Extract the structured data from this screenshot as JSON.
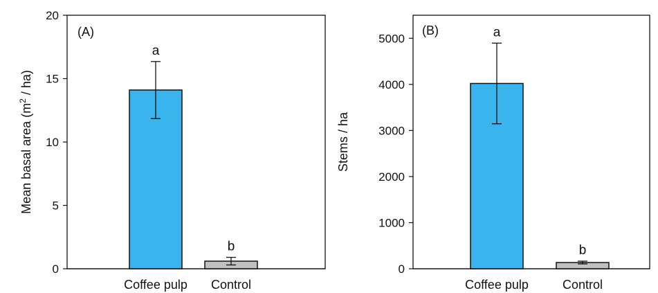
{
  "chart_data": [
    {
      "type": "bar",
      "panel_label": "(A)",
      "ylabel_prefix": "Mean basal area (m",
      "ylabel_superscript": "2",
      "ylabel_suffix": " / ha)",
      "categories": [
        "Coffee pulp",
        "Control"
      ],
      "values": [
        14.1,
        0.6
      ],
      "error": [
        2.25,
        0.3
      ],
      "significance": [
        "a",
        "b"
      ],
      "bar_colors": [
        "#3bb4ee",
        "#c0c0c0"
      ],
      "ylim": [
        0,
        20
      ],
      "yticks": [
        0,
        5,
        10,
        15,
        20
      ],
      "grid": false
    },
    {
      "type": "bar",
      "panel_label": "(B)",
      "ylabel": "Stems / ha",
      "categories": [
        "Coffee pulp",
        "Control"
      ],
      "values": [
        4020,
        135
      ],
      "error": [
        875,
        30
      ],
      "significance": [
        "a",
        "b"
      ],
      "bar_colors": [
        "#3bb4ee",
        "#c0c0c0"
      ],
      "ylim": [
        0,
        5500
      ],
      "yticks": [
        0,
        1000,
        2000,
        3000,
        4000,
        5000
      ],
      "grid": false
    }
  ]
}
